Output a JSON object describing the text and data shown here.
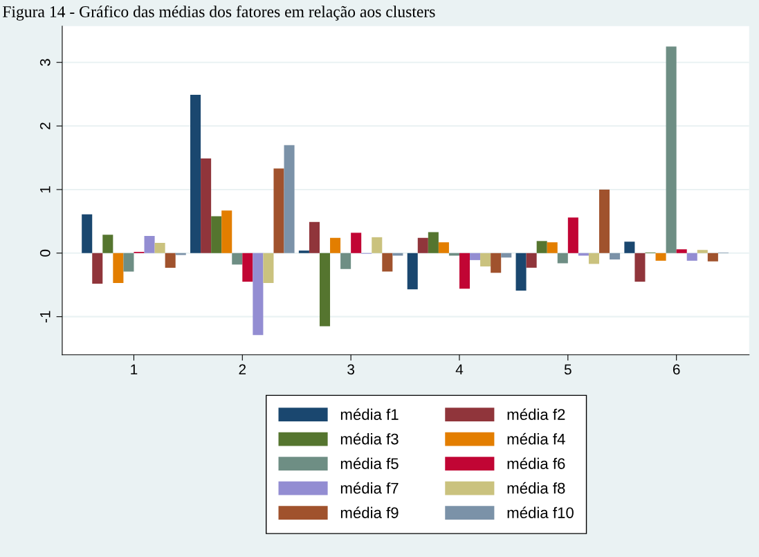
{
  "chart_data": {
    "type": "bar",
    "title": "Figura 14 - Gráfico das médias dos fatores em relação aos clusters",
    "categories": [
      "1",
      "2",
      "3",
      "4",
      "5",
      "6"
    ],
    "series": [
      {
        "name": "média f1",
        "color": "#1a476f",
        "values": [
          0.61,
          2.49,
          0.04,
          -0.57,
          -0.59,
          0.18
        ]
      },
      {
        "name": "média f2",
        "color": "#90353b",
        "values": [
          -0.48,
          1.49,
          0.49,
          0.24,
          -0.23,
          -0.45
        ]
      },
      {
        "name": "média f3",
        "color": "#55752f",
        "values": [
          0.29,
          0.58,
          -1.15,
          0.33,
          0.19,
          0.01
        ]
      },
      {
        "name": "média f4",
        "color": "#e37e00",
        "values": [
          -0.47,
          0.67,
          0.24,
          0.17,
          0.17,
          -0.12
        ]
      },
      {
        "name": "média f5",
        "color": "#6e8e84",
        "values": [
          -0.29,
          -0.18,
          -0.25,
          -0.04,
          -0.16,
          3.25
        ]
      },
      {
        "name": "média f6",
        "color": "#c10534",
        "values": [
          0.02,
          -0.45,
          0.32,
          -0.56,
          0.56,
          0.06
        ]
      },
      {
        "name": "média f7",
        "color": "#938dd2",
        "values": [
          0.27,
          -1.29,
          -0.01,
          -0.11,
          -0.04,
          -0.12
        ]
      },
      {
        "name": "média f8",
        "color": "#cac27e",
        "values": [
          0.16,
          -0.47,
          0.25,
          -0.21,
          -0.17,
          0.05
        ]
      },
      {
        "name": "média f9",
        "color": "#a0522d",
        "values": [
          -0.23,
          1.33,
          -0.29,
          -0.31,
          1.0,
          -0.13
        ]
      },
      {
        "name": "média f10",
        "color": "#7b92a8",
        "values": [
          -0.03,
          1.7,
          -0.04,
          -0.07,
          -0.1,
          0.01
        ]
      }
    ],
    "ylim": [
      -1.6,
      3.57
    ],
    "yticks": [
      {
        "value": -1,
        "label": "-1"
      },
      0,
      1,
      2,
      3
    ],
    "grid": "y",
    "legend": "bottom"
  }
}
